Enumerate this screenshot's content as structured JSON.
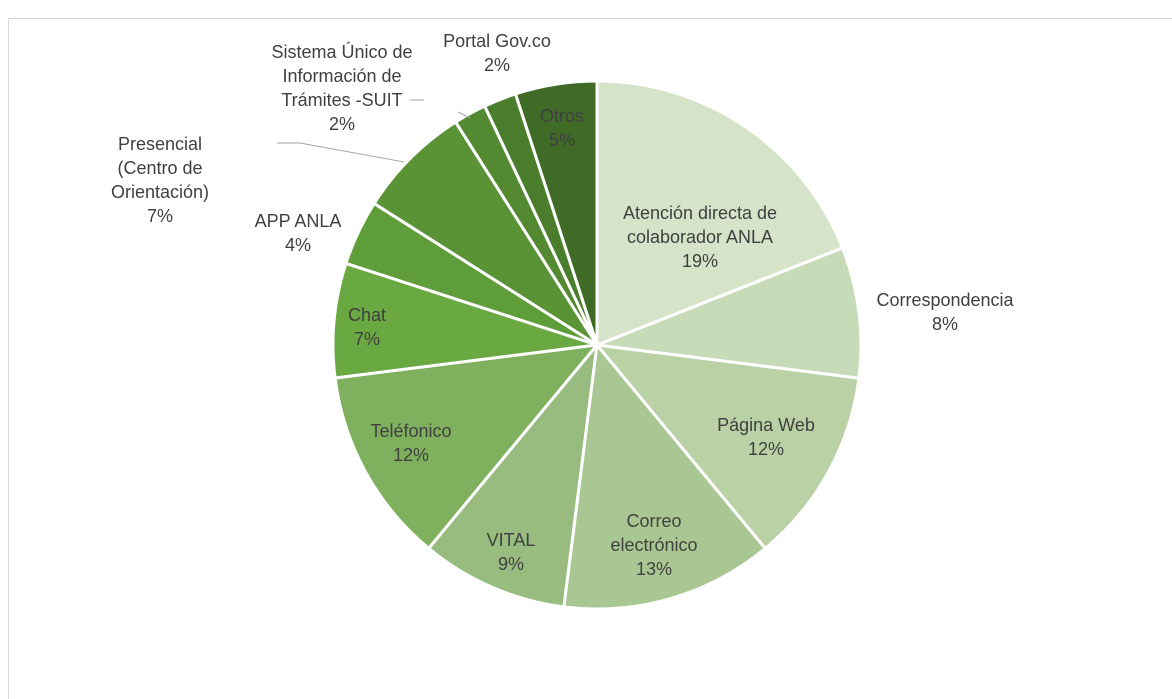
{
  "chart_data": {
    "type": "pie",
    "categories": [
      "Atención directa de colaborador ANLA",
      "Correspondencia",
      "Página Web",
      "Correo electrónico",
      "VITAL",
      "Teléfonico",
      "Chat",
      "APP ANLA",
      "Presencial (Centro de Orientación)",
      "Sistema Único de Información de Trámites -SUIT",
      "Portal Gov.co",
      "Otros"
    ],
    "values": [
      19,
      8,
      12,
      13,
      9,
      12,
      7,
      4,
      7,
      2,
      2,
      5
    ],
    "value_labels": [
      "19%",
      "8%",
      "12%",
      "13%",
      "9%",
      "12%",
      "7%",
      "4%",
      "7%",
      "2%",
      "2%",
      "5%"
    ],
    "colors": [
      "#d5e3c9",
      "#c8dbb8",
      "#b9d1a5",
      "#a9c792",
      "#98bc7f",
      "#7fb05d",
      "#6aa842",
      "#5f9d3a",
      "#5a9236",
      "#538a31",
      "#4a7d2c",
      "#3f6b27"
    ]
  }
}
